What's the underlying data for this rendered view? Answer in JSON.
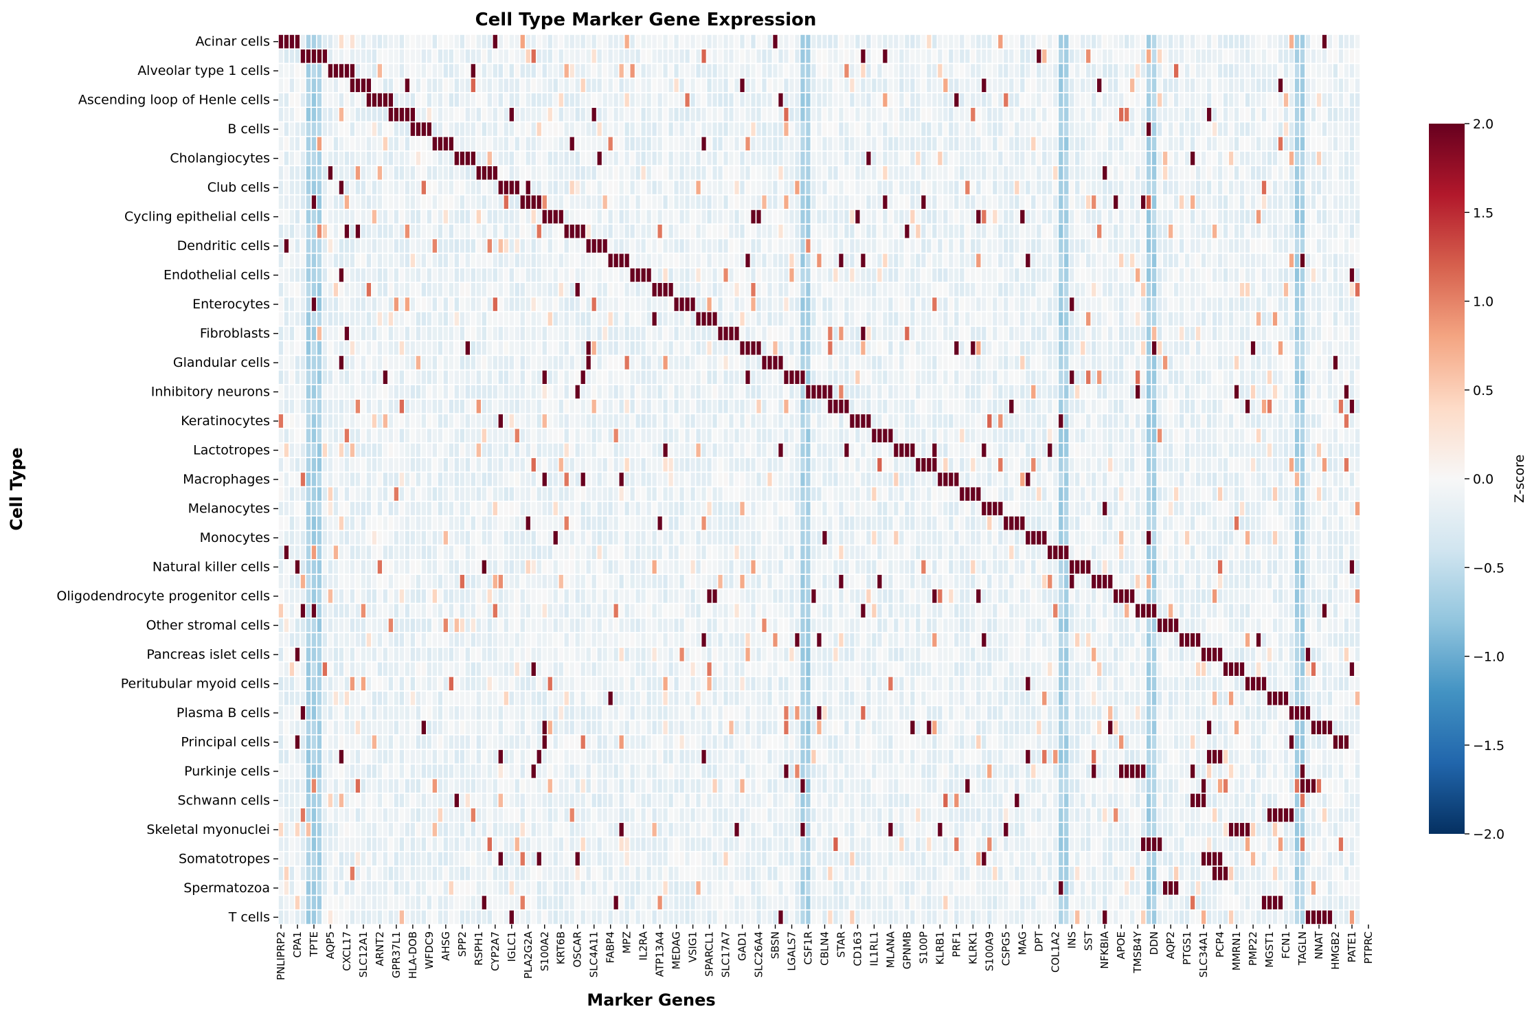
{
  "chart_data": {
    "type": "heatmap",
    "title": "Cell Type Marker Gene Expression",
    "xlabel": "Marker Genes",
    "ylabel": "Cell Type",
    "colorbar": {
      "label": "Z-score",
      "range": [
        -2.0,
        2.0
      ],
      "ticks": [
        -2.0,
        -1.5,
        -1.0,
        -0.5,
        0.0,
        0.5,
        1.0,
        1.5,
        2.0
      ],
      "colormap": "RdBu_r",
      "stops": [
        "#053061",
        "#2166ac",
        "#4393c3",
        "#92c5de",
        "#d1e5f0",
        "#f7f7f7",
        "#fddbc7",
        "#f4a582",
        "#d6604d",
        "#b2182b",
        "#67001f"
      ]
    },
    "row_count": 61,
    "column_count": 197,
    "gridlines": "white",
    "row_labels": [
      "Acinar cells",
      "Alveolar type 1 cells",
      "Ascending loop of Henle cells",
      "B cells",
      "Cholangiocytes",
      "Club cells",
      "Cycling epithelial cells",
      "Dendritic cells",
      "Endothelial cells",
      "Enterocytes",
      "Fibroblasts",
      "Glandular cells",
      "Inhibitory neurons",
      "Keratinocytes",
      "Lactotropes",
      "Macrophages",
      "Melanocytes",
      "Monocytes",
      "Natural killer cells",
      "Oligodendrocyte progenitor cells",
      "Other stromal cells",
      "Pancreas islet cells",
      "Peritubular myoid cells",
      "Plasma B cells",
      "Principal cells",
      "Purkinje cells",
      "Schwann cells",
      "Skeletal myonuclei",
      "Somatotropes",
      "Spermatozoa",
      "T cells"
    ],
    "column_labels": [
      "PNLIPRP2",
      "CPA1",
      "TPTE",
      "AQP5",
      "CXCL17",
      "SLC12A1",
      "ARNT2",
      "GPR37L1",
      "HLA-DOB",
      "WFDC9",
      "AHSG",
      "SPP2",
      "RSPH1",
      "CYP2A7",
      "IGLC1",
      "PLA2G2A",
      "S100A2",
      "KRT6B",
      "OSCAR",
      "SLC4A11",
      "FABP4",
      "MPZ",
      "IL2RA",
      "ATP13A4",
      "MEDAG",
      "VSIG1",
      "SPARCL1",
      "SLC17A7",
      "GAD1",
      "SLC26A4",
      "SBSN",
      "LGALS7",
      "CSF1R",
      "CBLN4",
      "STAR",
      "CD163",
      "IL1RL1",
      "MLANA",
      "GPNMB",
      "S100P",
      "KLRB1",
      "PRF1",
      "KLRK1",
      "S100A9",
      "CSPG5",
      "MAG",
      "DPT",
      "COL1A2",
      "INS",
      "SST",
      "NFKBIA",
      "APOE",
      "TMSB4Y",
      "DDN",
      "AQP2",
      "PTGS1",
      "SLC34A1",
      "PCP4",
      "MMRN1",
      "PMP22",
      "MGST1",
      "FCN1",
      "TAGLN",
      "NNAT",
      "HMGB2",
      "PATE1",
      "PTPRC"
    ],
    "blocks": [
      [
        0,
        0,
        4
      ],
      [
        1,
        4,
        5
      ],
      [
        2,
        9,
        5
      ],
      [
        3,
        13,
        4
      ],
      [
        4,
        16,
        5
      ],
      [
        5,
        20,
        5
      ],
      [
        6,
        24,
        4
      ],
      [
        7,
        28,
        4
      ],
      [
        8,
        32,
        4
      ],
      [
        9,
        36,
        4
      ],
      [
        10,
        40,
        4
      ],
      [
        11,
        44,
        4
      ],
      [
        12,
        48,
        4
      ],
      [
        13,
        52,
        4
      ],
      [
        14,
        56,
        4
      ],
      [
        15,
        60,
        4
      ],
      [
        16,
        64,
        4
      ],
      [
        17,
        68,
        4
      ],
      [
        18,
        72,
        4
      ],
      [
        19,
        76,
        4
      ],
      [
        20,
        80,
        4
      ],
      [
        21,
        84,
        4
      ],
      [
        22,
        88,
        4
      ],
      [
        23,
        92,
        4
      ],
      [
        24,
        96,
        4
      ],
      [
        25,
        100,
        4
      ],
      [
        26,
        104,
        4
      ],
      [
        27,
        108,
        4
      ],
      [
        28,
        112,
        4
      ],
      [
        29,
        116,
        4
      ],
      [
        30,
        120,
        4
      ],
      [
        31,
        124,
        4
      ],
      [
        32,
        128,
        4
      ],
      [
        33,
        132,
        4
      ],
      [
        34,
        136,
        4
      ],
      [
        35,
        140,
        4
      ],
      [
        36,
        144,
        4
      ],
      [
        37,
        148,
        4
      ],
      [
        38,
        152,
        4
      ],
      [
        39,
        156,
        4
      ],
      [
        40,
        160,
        4
      ],
      [
        41,
        164,
        4
      ],
      [
        42,
        168,
        4
      ],
      [
        43,
        172,
        4
      ],
      [
        44,
        176,
        4
      ],
      [
        45,
        180,
        4
      ],
      [
        46,
        184,
        4
      ],
      [
        47,
        188,
        4
      ],
      [
        48,
        192,
        3
      ]
    ]
  }
}
